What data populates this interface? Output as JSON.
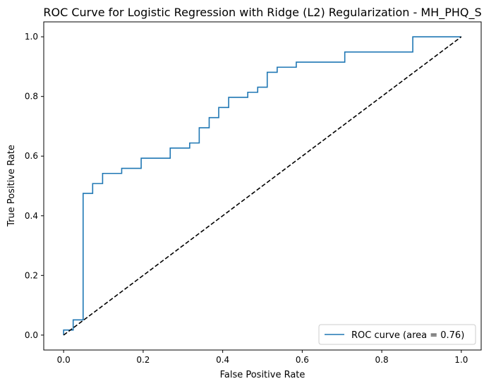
{
  "chart_data": {
    "type": "line",
    "title": "ROC Curve for Logistic Regression with Ridge (L2) Regularization - MH_PHQ_S",
    "xlabel": "False Positive Rate",
    "ylabel": "True Positive Rate",
    "xlim": [
      -0.05,
      1.05
    ],
    "ylim": [
      -0.05,
      1.05
    ],
    "xticks": [
      0.0,
      0.2,
      0.4,
      0.6,
      0.8,
      1.0
    ],
    "xtick_labels": [
      "0.0",
      "0.2",
      "0.4",
      "0.6",
      "0.8",
      "1.0"
    ],
    "yticks": [
      0.0,
      0.2,
      0.4,
      0.6,
      0.8,
      1.0
    ],
    "ytick_labels": [
      "0.0",
      "0.2",
      "0.4",
      "0.6",
      "0.8",
      "1.0"
    ],
    "grid": false,
    "legend_position": "lower-right",
    "series": [
      {
        "name": "ROC curve (area = 0.76)",
        "color": "#1f77b4",
        "style": "solid",
        "x": [
          0.0,
          0.0,
          0.024,
          0.024,
          0.049,
          0.049,
          0.073,
          0.073,
          0.098,
          0.098,
          0.146,
          0.146,
          0.195,
          0.195,
          0.268,
          0.268,
          0.317,
          0.317,
          0.341,
          0.341,
          0.366,
          0.366,
          0.39,
          0.39,
          0.415,
          0.415,
          0.463,
          0.463,
          0.488,
          0.488,
          0.512,
          0.512,
          0.537,
          0.537,
          0.585,
          0.585,
          0.707,
          0.707,
          0.878,
          0.878,
          1.0
        ],
        "y": [
          0.0,
          0.017,
          0.017,
          0.051,
          0.051,
          0.475,
          0.475,
          0.508,
          0.508,
          0.542,
          0.542,
          0.559,
          0.559,
          0.593,
          0.593,
          0.627,
          0.627,
          0.644,
          0.644,
          0.695,
          0.695,
          0.729,
          0.729,
          0.763,
          0.763,
          0.797,
          0.797,
          0.814,
          0.814,
          0.831,
          0.831,
          0.881,
          0.881,
          0.898,
          0.898,
          0.915,
          0.915,
          0.949,
          0.949,
          1.0,
          1.0
        ]
      },
      {
        "name": "",
        "color": "#000000",
        "style": "dashed",
        "x": [
          0.0,
          1.0
        ],
        "y": [
          0.0,
          1.0
        ]
      }
    ]
  }
}
